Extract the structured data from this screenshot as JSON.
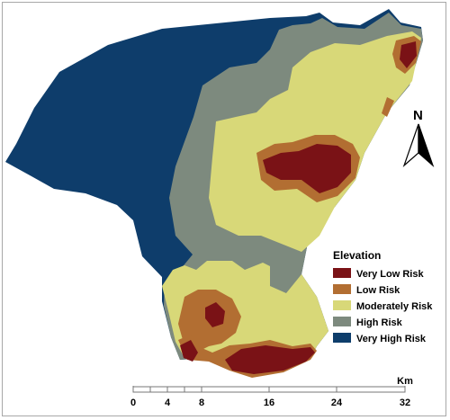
{
  "map": {
    "legend": {
      "title": "Elevation",
      "items": [
        {
          "label": "Very Low Risk",
          "color": "#7a1216"
        },
        {
          "label": "Low Risk",
          "color": "#b26e32"
        },
        {
          "label": "Moderately Risk",
          "color": "#d8d878"
        },
        {
          "label": "High Risk",
          "color": "#7d8a7e"
        },
        {
          "label": "Very High Risk",
          "color": "#0e3d6b"
        }
      ]
    },
    "north_arrow": {
      "label": "N"
    },
    "scale_bar": {
      "unit": "Km",
      "ticks": [
        "0",
        "4",
        "8",
        "16",
        "24",
        "32"
      ]
    }
  }
}
